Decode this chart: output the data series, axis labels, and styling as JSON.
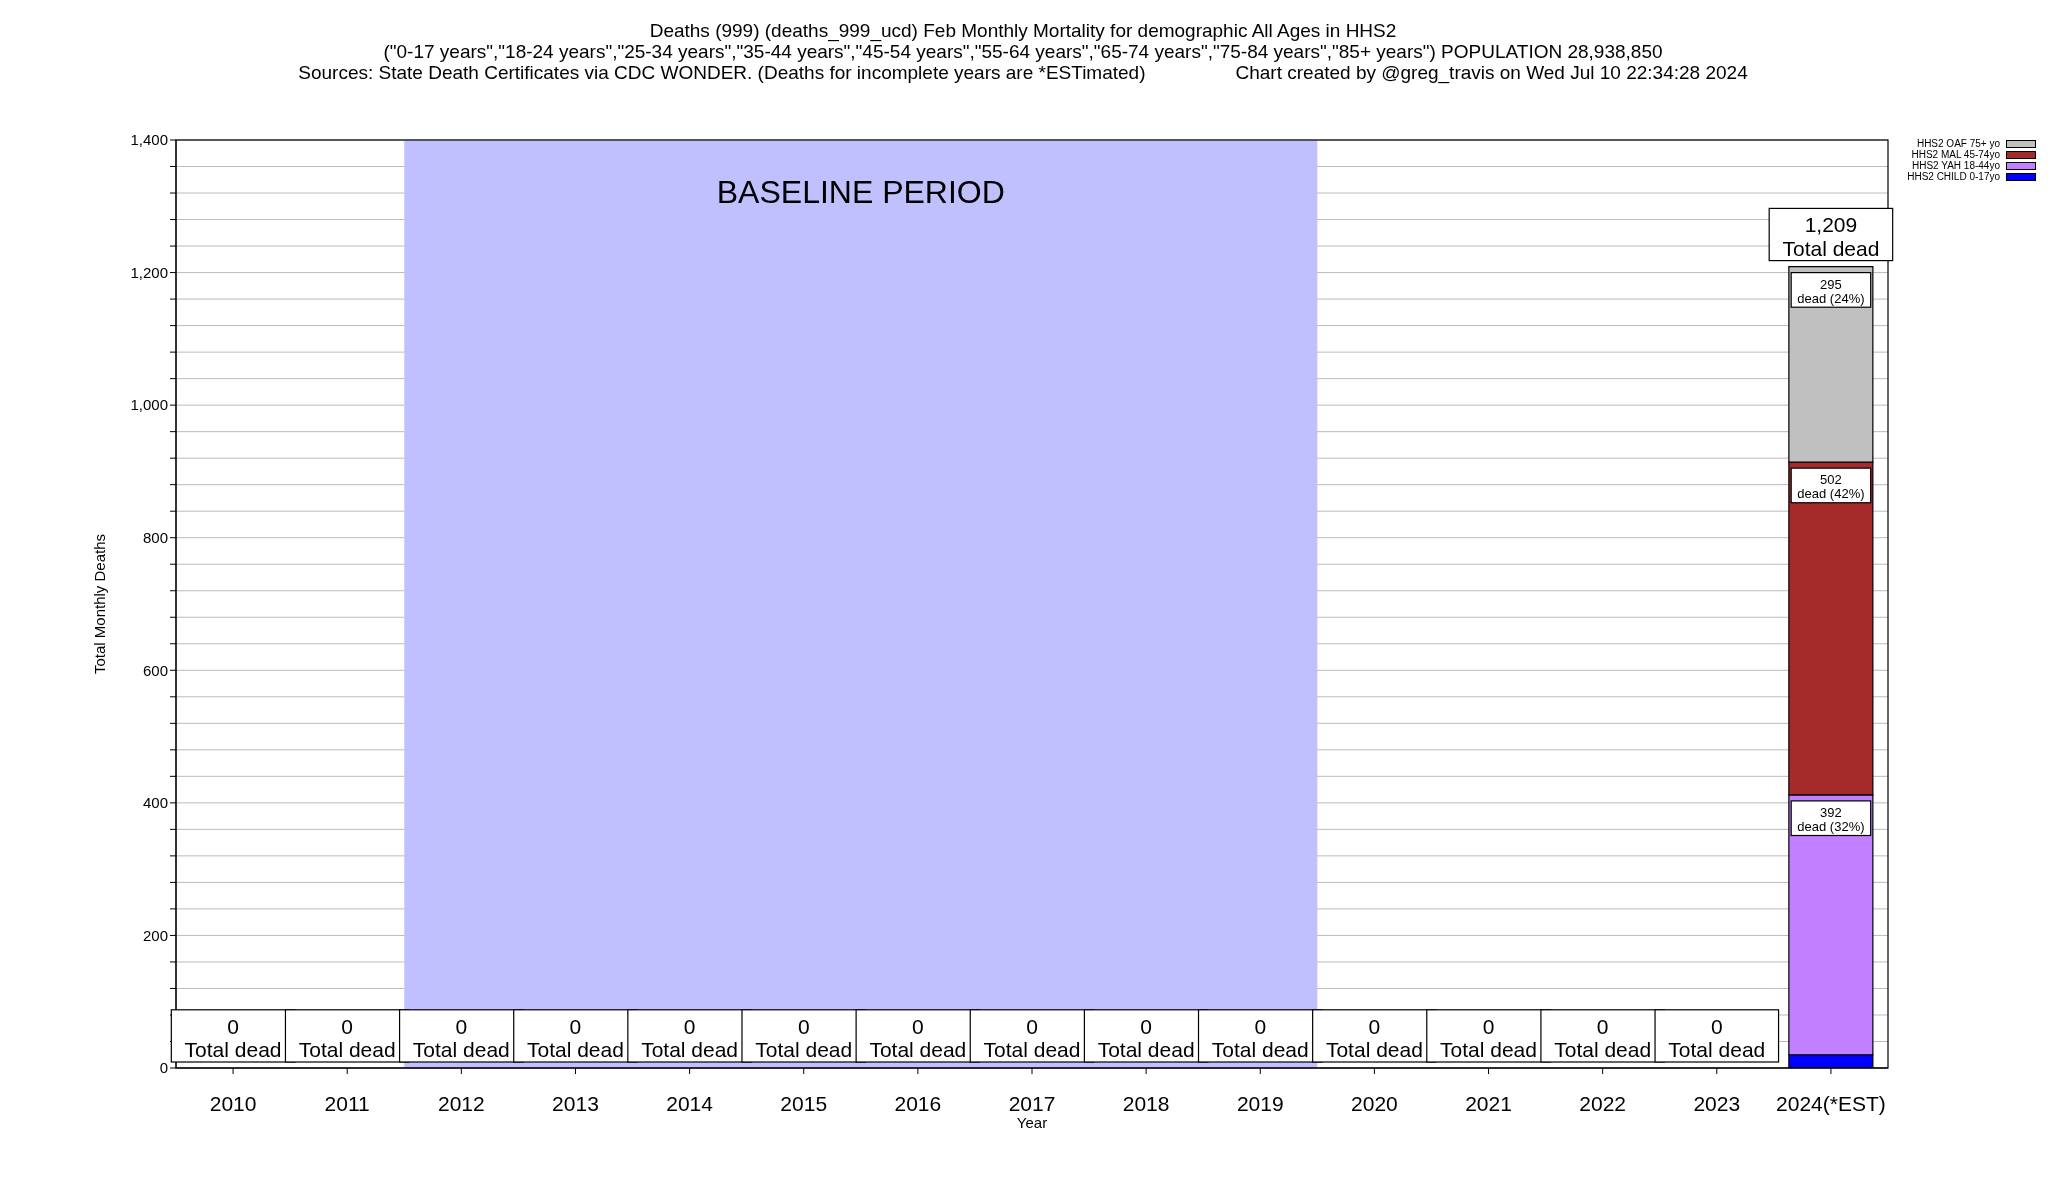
{
  "chart_data": {
    "type": "bar",
    "title": "Deaths (999) (deaths_999_ucd) Feb Monthly Mortality for demographic All Ages in HHS2",
    "subtitle": "(\"0-17 years\",\"18-24 years\",\"25-34 years\",\"35-44 years\",\"45-54 years\",\"55-64 years\",\"65-74 years\",\"75-84 years\",\"85+ years\") POPULATION 28,938,850",
    "annotations": [
      "Sources: State Death Certificates via CDC WONDER. (Deaths for incomplete years are *ESTimated)",
      "Chart created by @greg_travis on Wed Jul 10 22:34:28 2024"
    ],
    "xlabel": "Year",
    "ylabel": "Total Monthly Deaths",
    "categories": [
      "2010",
      "2011",
      "2012",
      "2013",
      "2014",
      "2015",
      "2016",
      "2017",
      "2018",
      "2019",
      "2020",
      "2021",
      "2022",
      "2023",
      "2024(*EST)"
    ],
    "stacked": true,
    "series": [
      {
        "name": "HHS2 CHILD 0-17yo",
        "color": "#0000ff",
        "values": [
          0,
          0,
          0,
          0,
          0,
          0,
          0,
          0,
          0,
          0,
          0,
          0,
          0,
          0,
          20
        ]
      },
      {
        "name": "HHS2 YAH 18-44yo",
        "color": "#c080ff",
        "values": [
          0,
          0,
          0,
          0,
          0,
          0,
          0,
          0,
          0,
          0,
          0,
          0,
          0,
          0,
          392
        ],
        "value_labels": [
          null,
          null,
          null,
          null,
          null,
          null,
          null,
          null,
          null,
          null,
          null,
          null,
          null,
          null,
          "392\ndead (32%)"
        ]
      },
      {
        "name": "HHS2 MAL 45-74yo",
        "color": "#a52a2a",
        "values": [
          0,
          0,
          0,
          0,
          0,
          0,
          0,
          0,
          0,
          0,
          0,
          0,
          0,
          0,
          502
        ],
        "value_labels": [
          null,
          null,
          null,
          null,
          null,
          null,
          null,
          null,
          null,
          null,
          null,
          null,
          null,
          null,
          "502\ndead (42%)"
        ]
      },
      {
        "name": "HHS2 OAF 75+ yo",
        "color": "#c0c0c0",
        "values": [
          0,
          0,
          0,
          0,
          0,
          0,
          0,
          0,
          0,
          0,
          0,
          0,
          0,
          0,
          295
        ],
        "value_labels": [
          null,
          null,
          null,
          null,
          null,
          null,
          null,
          null,
          null,
          null,
          null,
          null,
          null,
          null,
          "295\ndead (24%)"
        ]
      }
    ],
    "totals": [
      "0\nTotal dead",
      "0\nTotal dead",
      "0\nTotal dead",
      "0\nTotal dead",
      "0\nTotal dead",
      "0\nTotal dead",
      "0\nTotal dead",
      "0\nTotal dead",
      "0\nTotal dead",
      "0\nTotal dead",
      "0\nTotal dead",
      "0\nTotal dead",
      "0\nTotal dead",
      "0\nTotal dead",
      "1,209\nTotal dead"
    ],
    "bands": [
      {
        "axis": "x",
        "from": "2012",
        "to": "2019",
        "label": "BASELINE PERIOD",
        "color": "#c0c0ff"
      }
    ],
    "ylim": [
      0,
      1400
    ],
    "yticks": [
      0,
      {
        "value": 40,
        "label": null
      },
      {
        "value": 80,
        "label": null
      },
      {
        "value": 120,
        "label": null
      },
      {
        "value": 160,
        "label": null
      },
      200,
      {
        "value": 240,
        "label": null
      },
      {
        "value": 280,
        "label": null
      },
      {
        "value": 320,
        "label": null
      },
      {
        "value": 360,
        "label": null
      },
      400,
      {
        "value": 440,
        "label": null
      },
      {
        "value": 480,
        "label": null
      },
      {
        "value": 520,
        "label": null
      },
      {
        "value": 560,
        "label": null
      },
      600,
      {
        "value": 640,
        "label": null
      },
      {
        "value": 680,
        "label": null
      },
      {
        "value": 720,
        "label": null
      },
      {
        "value": 760,
        "label": null
      },
      800,
      {
        "value": 840,
        "label": null
      },
      {
        "value": 880,
        "label": null
      },
      {
        "value": 920,
        "label": null
      },
      {
        "value": 960,
        "label": null
      },
      {
        "value": 1000,
        "label": "1,000"
      },
      {
        "value": 1040,
        "label": null
      },
      {
        "value": 1080,
        "label": null
      },
      {
        "value": 1120,
        "label": null
      },
      {
        "value": 1160,
        "label": null
      },
      {
        "value": 1200,
        "label": "1,200"
      },
      {
        "value": 1240,
        "label": null
      },
      {
        "value": 1280,
        "label": null
      },
      {
        "value": 1320,
        "label": null
      },
      {
        "value": 1360,
        "label": null
      },
      {
        "value": 1400,
        "label": "1,400"
      }
    ],
    "grid": "y",
    "legend": "top right"
  }
}
